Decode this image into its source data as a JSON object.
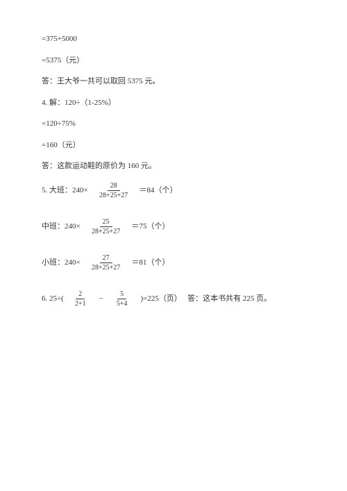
{
  "text_color": "#333333",
  "background_color": "#ffffff",
  "font_family": "SimSun",
  "base_font_size": 11,
  "lines": {
    "l1": "=375+5000",
    "l2": "=5375（元）",
    "l3": "答：王大爷一共可以取回 5375 元。",
    "l4": "4. 解：120÷（1-25%）",
    "l5": "=120÷75%",
    "l6": "=160（元）",
    "l7": "答：这款运动鞋的原价为 160 元。"
  },
  "q5": {
    "a_prefix": "5. 大班：240×",
    "a_num": "28",
    "a_den": "28+25+27",
    "a_suffix": "＝84（个）",
    "b_prefix": "中班：240×",
    "b_num": "25",
    "b_den": "28+25+27",
    "b_suffix": "＝75（个）",
    "c_prefix": "小班：240×",
    "c_num": "27",
    "c_den": "28+25+27",
    "c_suffix": "＝81（个）"
  },
  "q6": {
    "prefix": "6. 25÷(",
    "f1_num": "2",
    "f1_den": "2+1",
    "mid": "−",
    "f2_num": "5",
    "f2_den": "5+4",
    "suffix1": ")=225（页）",
    "suffix2": "答：这本书共有 225 页。"
  }
}
